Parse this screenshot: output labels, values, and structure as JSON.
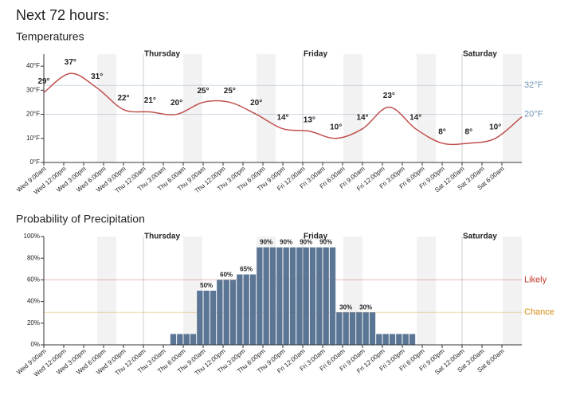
{
  "title": "Next 72 hours:",
  "chart_data": [
    {
      "type": "line",
      "title": "Temperatures",
      "x": [
        0,
        4,
        8,
        12,
        16,
        20,
        24,
        28,
        32,
        36,
        40,
        44,
        48,
        52,
        56,
        60,
        64,
        68,
        72
      ],
      "series": [
        {
          "name": "Temperature",
          "color": "#c0504d",
          "values": [
            29,
            37,
            31,
            22,
            21,
            20,
            25,
            25,
            20,
            14,
            13,
            10,
            14,
            23,
            14,
            8,
            8,
            10,
            19
          ],
          "value_labels": [
            "29°",
            "37°",
            "31°",
            "22°",
            "21°",
            "20°",
            "25°",
            "25°",
            "20°",
            "14°",
            "13°",
            "10°",
            "14°",
            "23°",
            "14°",
            "8°",
            "8°",
            "10°",
            null
          ]
        }
      ],
      "xlim": [
        0,
        72
      ],
      "xticks": [
        {
          "value": 0,
          "label": "Wed 9:00am"
        },
        {
          "value": 3,
          "label": "Wed 12:00pm"
        },
        {
          "value": 6,
          "label": "Wed 3:00pm"
        },
        {
          "value": 9,
          "label": "Wed 6:00pm"
        },
        {
          "value": 12,
          "label": "Wed 9:00pm"
        },
        {
          "value": 15,
          "label": "Thu 12:00am"
        },
        {
          "value": 18,
          "label": "Thu 3:00am"
        },
        {
          "value": 21,
          "label": "Thu 6:00am"
        },
        {
          "value": 24,
          "label": "Thu 9:00am"
        },
        {
          "value": 27,
          "label": "Thu 12:00pm"
        },
        {
          "value": 30,
          "label": "Thu 3:00pm"
        },
        {
          "value": 33,
          "label": "Thu 6:00pm"
        },
        {
          "value": 36,
          "label": "Thu 9:00pm"
        },
        {
          "value": 39,
          "label": "Fri 12:00am"
        },
        {
          "value": 42,
          "label": "Fri 3:00am"
        },
        {
          "value": 45,
          "label": "Fri 6:00am"
        },
        {
          "value": 48,
          "label": "Fri 9:00am"
        },
        {
          "value": 51,
          "label": "Fri 12:00pm"
        },
        {
          "value": 54,
          "label": "Fri 3:00pm"
        },
        {
          "value": 57,
          "label": "Fri 6:00pm"
        },
        {
          "value": 60,
          "label": "Fri 9:00pm"
        },
        {
          "value": 63,
          "label": "Sat 12:00am"
        },
        {
          "value": 66,
          "label": "Sat 3:00am"
        },
        {
          "value": 69,
          "label": "Sat 6:00am"
        }
      ],
      "day_markers": [
        {
          "value": 15,
          "label": "Thursday"
        },
        {
          "value": 39,
          "label": "Friday"
        },
        {
          "value": 63,
          "label": "Saturday"
        }
      ],
      "ylim": [
        0,
        45
      ],
      "yticks": [
        {
          "value": 0,
          "label": "0°F"
        },
        {
          "value": 10,
          "label": "10°F"
        },
        {
          "value": 20,
          "label": "20°F"
        },
        {
          "value": 30,
          "label": "30°F"
        },
        {
          "value": 40,
          "label": "40°F"
        }
      ],
      "reference_lines": [
        {
          "value": 32,
          "label": "32°F",
          "color": "#6f93b6"
        },
        {
          "value": 20,
          "label": "20°F",
          "color": "#6f93b6"
        }
      ]
    },
    {
      "type": "bar",
      "title": "Probability of Precipitation",
      "x": [
        0,
        1,
        2,
        3,
        4,
        5,
        6,
        7,
        8,
        9,
        10,
        11,
        12,
        13,
        14,
        15,
        16,
        17,
        18,
        19,
        20,
        21,
        22,
        23,
        24,
        25,
        26,
        27,
        28,
        29,
        30,
        31,
        32,
        33,
        34,
        35,
        36,
        37,
        38,
        39,
        40,
        41,
        42,
        43,
        44,
        45,
        46,
        47,
        48,
        49,
        50,
        51,
        52,
        53,
        54,
        55,
        56,
        57,
        58,
        59,
        60,
        61,
        62,
        63,
        64,
        65,
        66,
        67,
        68,
        69,
        70,
        71
      ],
      "series": [
        {
          "name": "Precipitation",
          "color": "#5b7595",
          "values": [
            0,
            0,
            0,
            0,
            0,
            0,
            0,
            0,
            0,
            0,
            0,
            0,
            0,
            0,
            0,
            0,
            0,
            0,
            0,
            10,
            10,
            10,
            10,
            50,
            50,
            50,
            60,
            60,
            60,
            65,
            65,
            65,
            90,
            90,
            90,
            90,
            90,
            90,
            90,
            90,
            90,
            90,
            90,
            90,
            30,
            30,
            30,
            30,
            30,
            30,
            10,
            10,
            10,
            10,
            10,
            10,
            0,
            0,
            0,
            0,
            0,
            0,
            0,
            0,
            0,
            0,
            0,
            0,
            0,
            0,
            0,
            0
          ],
          "value_labels": [
            null,
            null,
            null,
            null,
            null,
            null,
            null,
            null,
            null,
            null,
            null,
            null,
            null,
            null,
            null,
            null,
            null,
            null,
            null,
            null,
            null,
            null,
            null,
            null,
            "50%",
            null,
            null,
            "60%",
            null,
            null,
            "65%",
            null,
            null,
            "90%",
            null,
            null,
            "90%",
            null,
            null,
            "90%",
            null,
            null,
            "90%",
            null,
            null,
            "30%",
            null,
            null,
            "30%",
            null,
            null,
            null,
            null,
            null,
            null,
            null,
            null,
            null,
            null,
            null,
            null,
            null,
            null,
            null,
            null,
            null,
            null,
            null,
            null,
            null,
            null,
            null
          ]
        }
      ],
      "xlim": [
        0,
        72
      ],
      "xticks": [
        {
          "value": 0,
          "label": "Wed 9:00am"
        },
        {
          "value": 3,
          "label": "Wed 12:00pm"
        },
        {
          "value": 6,
          "label": "Wed 3:00pm"
        },
        {
          "value": 9,
          "label": "Wed 6:00pm"
        },
        {
          "value": 12,
          "label": "Wed 9:00pm"
        },
        {
          "value": 15,
          "label": "Thu 12:00am"
        },
        {
          "value": 18,
          "label": "Thu 3:00am"
        },
        {
          "value": 21,
          "label": "Thu 6:00am"
        },
        {
          "value": 24,
          "label": "Thu 9:00am"
        },
        {
          "value": 27,
          "label": "Thu 12:00pm"
        },
        {
          "value": 30,
          "label": "Thu 3:00pm"
        },
        {
          "value": 33,
          "label": "Thu 6:00pm"
        },
        {
          "value": 36,
          "label": "Thu 9:00pm"
        },
        {
          "value": 39,
          "label": "Fri 12:00am"
        },
        {
          "value": 42,
          "label": "Fri 3:00am"
        },
        {
          "value": 45,
          "label": "Fri 6:00am"
        },
        {
          "value": 48,
          "label": "Fri 9:00am"
        },
        {
          "value": 51,
          "label": "Fri 12:00pm"
        },
        {
          "value": 54,
          "label": "Fri 3:00pm"
        },
        {
          "value": 57,
          "label": "Fri 6:00pm"
        },
        {
          "value": 60,
          "label": "Fri 9:00pm"
        },
        {
          "value": 63,
          "label": "Sat 12:00am"
        },
        {
          "value": 66,
          "label": "Sat 3:00am"
        },
        {
          "value": 69,
          "label": "Sat 6:00am"
        }
      ],
      "day_markers": [
        {
          "value": 15,
          "label": "Thursday"
        },
        {
          "value": 39,
          "label": "Friday"
        },
        {
          "value": 63,
          "label": "Saturday"
        }
      ],
      "ylim": [
        0,
        100
      ],
      "yticks": [
        {
          "value": 0,
          "label": "0%"
        },
        {
          "value": 20,
          "label": "20%"
        },
        {
          "value": 40,
          "label": "40%"
        },
        {
          "value": 60,
          "label": "60%"
        },
        {
          "value": 80,
          "label": "80%"
        },
        {
          "value": 100,
          "label": "100%"
        }
      ],
      "reference_lines": [
        {
          "value": 60,
          "label": "Likely",
          "color": "#c0392b"
        },
        {
          "value": 30,
          "label": "Chance",
          "color": "#d68910"
        }
      ]
    }
  ]
}
